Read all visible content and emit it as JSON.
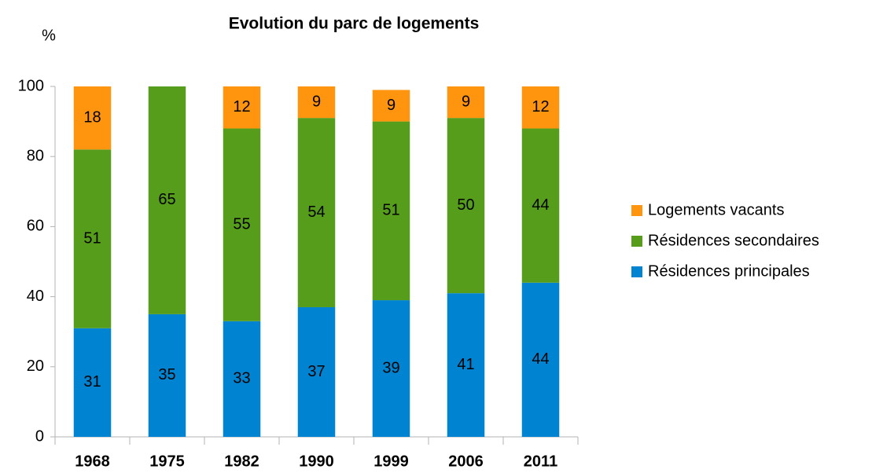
{
  "chart_data": {
    "type": "stacked-bar",
    "title": "Evolution du parc de logements",
    "y_label": "%",
    "categories": [
      "1968",
      "1975",
      "1982",
      "1990",
      "1999",
      "2006",
      "2011"
    ],
    "series": [
      {
        "name": "Résidences principales",
        "color": "#0084d1",
        "values": [
          31,
          35,
          33,
          37,
          39,
          41,
          44
        ]
      },
      {
        "name": "Résidences secondaires",
        "color": "#579d1c",
        "values": [
          51,
          65,
          55,
          54,
          51,
          50,
          44
        ]
      },
      {
        "name": "Logements vacants",
        "color": "#ff950e",
        "values": [
          18,
          null,
          12,
          9,
          9,
          9,
          12
        ]
      }
    ],
    "ylim": [
      0,
      100
    ],
    "yticks": [
      0,
      20,
      40,
      60,
      80,
      100
    ],
    "grid": false,
    "legend": "right"
  }
}
